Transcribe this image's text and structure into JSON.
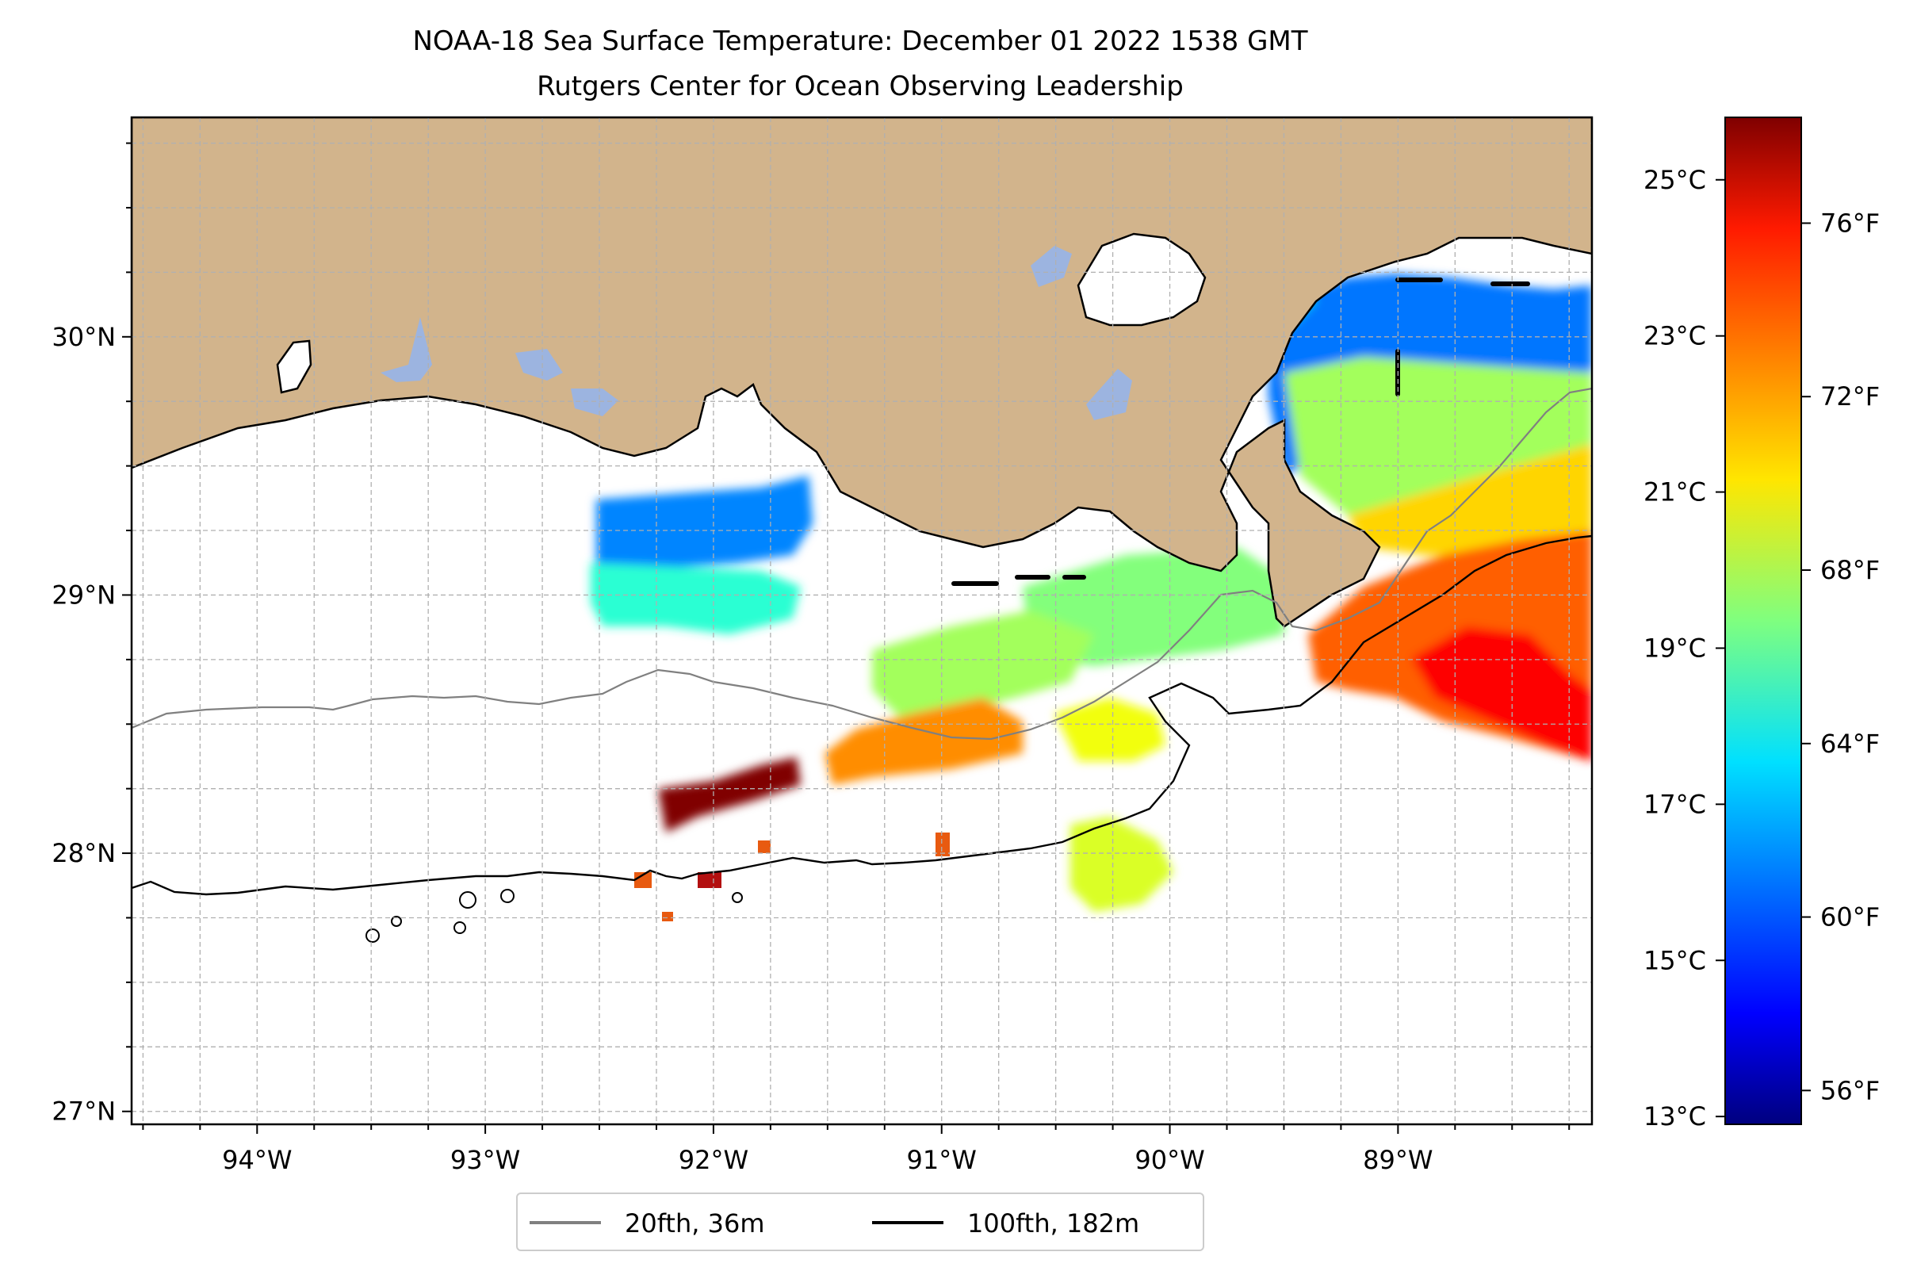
{
  "title": {
    "line1": "NOAA-18 Sea Surface Temperature: December 01 2022 1538 GMT",
    "line2": "Rutgers Center for Ocean Observing Leadership"
  },
  "map": {
    "lon_range": [
      -94.55,
      -88.15
    ],
    "lat_range": [
      26.95,
      30.85
    ],
    "lon_ticks": [
      {
        "value": -94,
        "label": "94°W"
      },
      {
        "value": -93,
        "label": "93°W"
      },
      {
        "value": -92,
        "label": "92°W"
      },
      {
        "value": -91,
        "label": "91°W"
      },
      {
        "value": -90,
        "label": "90°W"
      },
      {
        "value": -89,
        "label": "89°W"
      }
    ],
    "lat_ticks": [
      {
        "value": 27,
        "label": "27°N"
      },
      {
        "value": 28,
        "label": "28°N"
      },
      {
        "value": 29,
        "label": "29°N"
      },
      {
        "value": 30,
        "label": "30°N"
      }
    ],
    "gridlines": "dashed",
    "land_color": "#d2b48c",
    "lake_color": "#9cb4e0",
    "ocean_color": "#ffffff"
  },
  "legend": {
    "placement": "below-center",
    "entries": [
      {
        "label": "20fth, 36m",
        "color": "#808080"
      },
      {
        "label": "100fth, 182m",
        "color": "#000000"
      }
    ]
  },
  "colorbar": {
    "colormap": "jet",
    "celsius_range": [
      12.9,
      25.8
    ],
    "celsius_ticks": [
      {
        "value": 13,
        "label": "13°C"
      },
      {
        "value": 15,
        "label": "15°C"
      },
      {
        "value": 17,
        "label": "17°C"
      },
      {
        "value": 19,
        "label": "19°C"
      },
      {
        "value": 21,
        "label": "21°C"
      },
      {
        "value": 23,
        "label": "23°C"
      },
      {
        "value": 25,
        "label": "25°C"
      }
    ],
    "fahrenheit_ticks": [
      {
        "value": 56,
        "label": "56°F"
      },
      {
        "value": 60,
        "label": "60°F"
      },
      {
        "value": 64,
        "label": "64°F"
      },
      {
        "value": 68,
        "label": "68°F"
      },
      {
        "value": 72,
        "label": "72°F"
      },
      {
        "value": 76,
        "label": "76°F"
      }
    ]
  },
  "chart_data": {
    "type": "heatmap",
    "description_units": "sea surface temperature in degrees Celsius",
    "title": "NOAA-18 Sea Surface Temperature: December 01 2022 1538 GMT",
    "subtitle": "Rutgers Center for Ocean Observing Leadership",
    "xlim": [
      -94.55,
      -88.15
    ],
    "ylim": [
      26.95,
      30.85
    ],
    "value_range_celsius": [
      12.9,
      25.8
    ],
    "patches": [
      {
        "lon": -88.6,
        "lat": 29.9,
        "sst": 16.0
      },
      {
        "lon": -88.9,
        "lat": 29.75,
        "sst": 17.2
      },
      {
        "lon": -88.7,
        "lat": 29.5,
        "sst": 19.8
      },
      {
        "lon": -88.5,
        "lat": 29.2,
        "sst": 21.5
      },
      {
        "lon": -88.5,
        "lat": 28.85,
        "sst": 23.0
      },
      {
        "lon": -88.55,
        "lat": 28.7,
        "sst": 24.2
      },
      {
        "lon": -92.1,
        "lat": 29.2,
        "sst": 16.2
      },
      {
        "lon": -92.2,
        "lat": 29.0,
        "sst": 18.3
      },
      {
        "lon": -90.1,
        "lat": 28.9,
        "sst": 19.4
      },
      {
        "lon": -90.8,
        "lat": 28.75,
        "sst": 19.8
      },
      {
        "lon": -91.7,
        "lat": 28.35,
        "sst": 22.4
      },
      {
        "lon": -92.0,
        "lat": 28.2,
        "sst": 25.8
      },
      {
        "lon": -90.3,
        "lat": 27.95,
        "sst": 20.5
      },
      {
        "lon": -90.2,
        "lat": 28.4,
        "sst": 20.8
      }
    ]
  }
}
